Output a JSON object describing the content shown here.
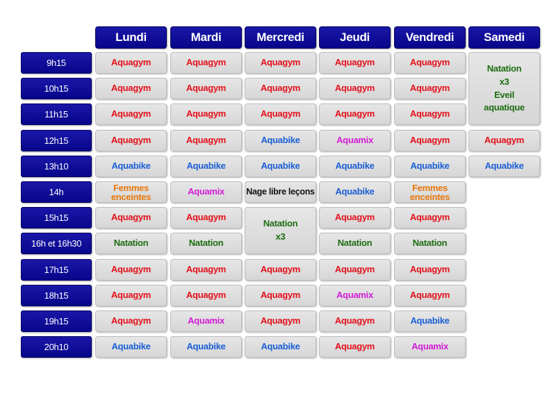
{
  "colors": {
    "header_bg": "#0b0a95",
    "cell_bg": "#dedede",
    "aquagym": "#e3101a",
    "aquabike": "#1a5fd6",
    "aquamix": "#d31bd6",
    "natation": "#1e6e12",
    "femmes_enceintes": "#e8780d",
    "nage_libre": "#111111"
  },
  "days": [
    "Lundi",
    "Mardi",
    "Mercredi",
    "Jeudi",
    "Vendredi",
    "Samedi"
  ],
  "times": [
    "9h15",
    "10h15",
    "11h15",
    "12h15",
    "13h10",
    "14h",
    "15h15",
    "16h et 16h30",
    "17h15",
    "18h15",
    "19h15",
    "20h10"
  ],
  "cells": [
    {
      "day": 0,
      "row": 0,
      "span": 1,
      "lines": [
        "Aquagym"
      ],
      "kind": "aquagym"
    },
    {
      "day": 1,
      "row": 0,
      "span": 1,
      "lines": [
        "Aquagym"
      ],
      "kind": "aquagym"
    },
    {
      "day": 2,
      "row": 0,
      "span": 1,
      "lines": [
        "Aquagym"
      ],
      "kind": "aquagym"
    },
    {
      "day": 3,
      "row": 0,
      "span": 1,
      "lines": [
        "Aquagym"
      ],
      "kind": "aquagym"
    },
    {
      "day": 4,
      "row": 0,
      "span": 1,
      "lines": [
        "Aquagym"
      ],
      "kind": "aquagym"
    },
    {
      "day": 5,
      "row": 0,
      "span": 3,
      "lines": [
        "Natation",
        "x3",
        "Eveil",
        "aquatique"
      ],
      "kind": "natation"
    },
    {
      "day": 0,
      "row": 1,
      "span": 1,
      "lines": [
        "Aquagym"
      ],
      "kind": "aquagym"
    },
    {
      "day": 1,
      "row": 1,
      "span": 1,
      "lines": [
        "Aquagym"
      ],
      "kind": "aquagym"
    },
    {
      "day": 2,
      "row": 1,
      "span": 1,
      "lines": [
        "Aquagym"
      ],
      "kind": "aquagym"
    },
    {
      "day": 3,
      "row": 1,
      "span": 1,
      "lines": [
        "Aquagym"
      ],
      "kind": "aquagym"
    },
    {
      "day": 4,
      "row": 1,
      "span": 1,
      "lines": [
        "Aquagym"
      ],
      "kind": "aquagym"
    },
    {
      "day": 0,
      "row": 2,
      "span": 1,
      "lines": [
        "Aquagym"
      ],
      "kind": "aquagym"
    },
    {
      "day": 1,
      "row": 2,
      "span": 1,
      "lines": [
        "Aquagym"
      ],
      "kind": "aquagym"
    },
    {
      "day": 2,
      "row": 2,
      "span": 1,
      "lines": [
        "Aquagym"
      ],
      "kind": "aquagym"
    },
    {
      "day": 3,
      "row": 2,
      "span": 1,
      "lines": [
        "Aquagym"
      ],
      "kind": "aquagym"
    },
    {
      "day": 4,
      "row": 2,
      "span": 1,
      "lines": [
        "Aquagym"
      ],
      "kind": "aquagym"
    },
    {
      "day": 0,
      "row": 3,
      "span": 1,
      "lines": [
        "Aquagym"
      ],
      "kind": "aquagym"
    },
    {
      "day": 1,
      "row": 3,
      "span": 1,
      "lines": [
        "Aquagym"
      ],
      "kind": "aquagym"
    },
    {
      "day": 2,
      "row": 3,
      "span": 1,
      "lines": [
        "Aquabike"
      ],
      "kind": "aquabike"
    },
    {
      "day": 3,
      "row": 3,
      "span": 1,
      "lines": [
        "Aquamix"
      ],
      "kind": "aquamix"
    },
    {
      "day": 4,
      "row": 3,
      "span": 1,
      "lines": [
        "Aquagym"
      ],
      "kind": "aquagym"
    },
    {
      "day": 5,
      "row": 3,
      "span": 1,
      "lines": [
        "Aquagym"
      ],
      "kind": "aquagym"
    },
    {
      "day": 0,
      "row": 4,
      "span": 1,
      "lines": [
        "Aquabike"
      ],
      "kind": "aquabike"
    },
    {
      "day": 1,
      "row": 4,
      "span": 1,
      "lines": [
        "Aquabike"
      ],
      "kind": "aquabike"
    },
    {
      "day": 2,
      "row": 4,
      "span": 1,
      "lines": [
        "Aquabike"
      ],
      "kind": "aquabike"
    },
    {
      "day": 3,
      "row": 4,
      "span": 1,
      "lines": [
        "Aquabike"
      ],
      "kind": "aquabike"
    },
    {
      "day": 4,
      "row": 4,
      "span": 1,
      "lines": [
        "Aquabike"
      ],
      "kind": "aquabike"
    },
    {
      "day": 5,
      "row": 4,
      "span": 1,
      "lines": [
        "Aquabike"
      ],
      "kind": "aquabike"
    },
    {
      "day": 0,
      "row": 5,
      "span": 1,
      "lines": [
        "Femmes",
        "enceintes"
      ],
      "kind": "femmes"
    },
    {
      "day": 1,
      "row": 5,
      "span": 1,
      "lines": [
        "Aquamix"
      ],
      "kind": "aquamix"
    },
    {
      "day": 2,
      "row": 5,
      "span": 1,
      "lines": [
        "Nage libre leçons"
      ],
      "kind": "nage"
    },
    {
      "day": 3,
      "row": 5,
      "span": 1,
      "lines": [
        "Aquabike"
      ],
      "kind": "aquabike"
    },
    {
      "day": 4,
      "row": 5,
      "span": 1,
      "lines": [
        "Femmes",
        "enceintes"
      ],
      "kind": "femmes"
    },
    {
      "day": 0,
      "row": 6,
      "span": 1,
      "lines": [
        "Aquagym"
      ],
      "kind": "aquagym"
    },
    {
      "day": 1,
      "row": 6,
      "span": 1,
      "lines": [
        "Aquagym"
      ],
      "kind": "aquagym"
    },
    {
      "day": 2,
      "row": 6,
      "span": 2,
      "lines": [
        "Natation",
        "x3"
      ],
      "kind": "natation"
    },
    {
      "day": 3,
      "row": 6,
      "span": 1,
      "lines": [
        "Aquagym"
      ],
      "kind": "aquagym"
    },
    {
      "day": 4,
      "row": 6,
      "span": 1,
      "lines": [
        "Aquagym"
      ],
      "kind": "aquagym"
    },
    {
      "day": 0,
      "row": 7,
      "span": 1,
      "lines": [
        "Natation"
      ],
      "kind": "natation"
    },
    {
      "day": 1,
      "row": 7,
      "span": 1,
      "lines": [
        "Natation"
      ],
      "kind": "natation"
    },
    {
      "day": 3,
      "row": 7,
      "span": 1,
      "lines": [
        "Natation"
      ],
      "kind": "natation"
    },
    {
      "day": 4,
      "row": 7,
      "span": 1,
      "lines": [
        "Natation"
      ],
      "kind": "natation"
    },
    {
      "day": 0,
      "row": 8,
      "span": 1,
      "lines": [
        "Aquagym"
      ],
      "kind": "aquagym"
    },
    {
      "day": 1,
      "row": 8,
      "span": 1,
      "lines": [
        "Aquagym"
      ],
      "kind": "aquagym"
    },
    {
      "day": 2,
      "row": 8,
      "span": 1,
      "lines": [
        "Aquagym"
      ],
      "kind": "aquagym"
    },
    {
      "day": 3,
      "row": 8,
      "span": 1,
      "lines": [
        "Aquagym"
      ],
      "kind": "aquagym"
    },
    {
      "day": 4,
      "row": 8,
      "span": 1,
      "lines": [
        "Aquagym"
      ],
      "kind": "aquagym"
    },
    {
      "day": 0,
      "row": 9,
      "span": 1,
      "lines": [
        "Aquagym"
      ],
      "kind": "aquagym"
    },
    {
      "day": 1,
      "row": 9,
      "span": 1,
      "lines": [
        "Aquagym"
      ],
      "kind": "aquagym"
    },
    {
      "day": 2,
      "row": 9,
      "span": 1,
      "lines": [
        "Aquagym"
      ],
      "kind": "aquagym"
    },
    {
      "day": 3,
      "row": 9,
      "span": 1,
      "lines": [
        "Aquamix"
      ],
      "kind": "aquamix"
    },
    {
      "day": 4,
      "row": 9,
      "span": 1,
      "lines": [
        "Aquagym"
      ],
      "kind": "aquagym"
    },
    {
      "day": 0,
      "row": 10,
      "span": 1,
      "lines": [
        "Aquagym"
      ],
      "kind": "aquagym"
    },
    {
      "day": 1,
      "row": 10,
      "span": 1,
      "lines": [
        "Aquamix"
      ],
      "kind": "aquamix"
    },
    {
      "day": 2,
      "row": 10,
      "span": 1,
      "lines": [
        "Aquagym"
      ],
      "kind": "aquagym"
    },
    {
      "day": 3,
      "row": 10,
      "span": 1,
      "lines": [
        "Aquagym"
      ],
      "kind": "aquagym"
    },
    {
      "day": 4,
      "row": 10,
      "span": 1,
      "lines": [
        "Aquabike"
      ],
      "kind": "aquabike"
    },
    {
      "day": 0,
      "row": 11,
      "span": 1,
      "lines": [
        "Aquabike"
      ],
      "kind": "aquabike"
    },
    {
      "day": 1,
      "row": 11,
      "span": 1,
      "lines": [
        "Aquabike"
      ],
      "kind": "aquabike"
    },
    {
      "day": 2,
      "row": 11,
      "span": 1,
      "lines": [
        "Aquabike"
      ],
      "kind": "aquabike"
    },
    {
      "day": 3,
      "row": 11,
      "span": 1,
      "lines": [
        "Aquagym"
      ],
      "kind": "aquagym"
    },
    {
      "day": 4,
      "row": 11,
      "span": 1,
      "lines": [
        "Aquamix"
      ],
      "kind": "aquamix"
    }
  ]
}
